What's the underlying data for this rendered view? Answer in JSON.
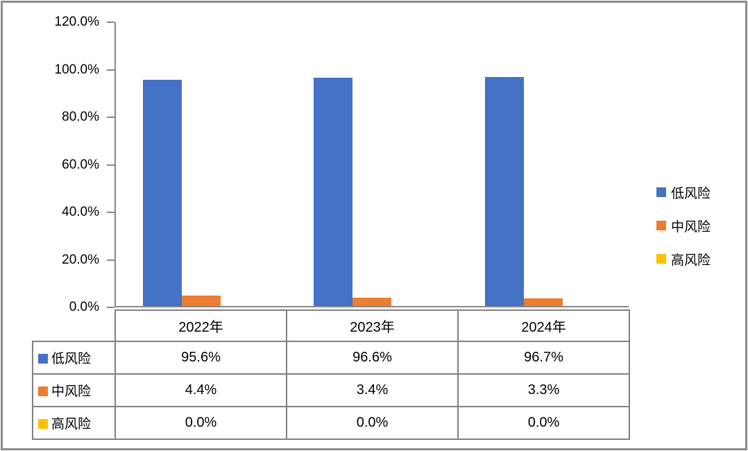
{
  "chart_data": {
    "type": "bar",
    "categories": [
      "2022年",
      "2023年",
      "2024年"
    ],
    "series": [
      {
        "name": "低风险",
        "color": "#4472C4",
        "values": [
          95.6,
          96.6,
          96.7
        ]
      },
      {
        "name": "中风险",
        "color": "#ED7D31",
        "values": [
          4.4,
          3.4,
          3.3
        ]
      },
      {
        "name": "高风险",
        "color": "#FFC000",
        "values": [
          0.0,
          0.0,
          0.0
        ]
      }
    ],
    "title": "",
    "xlabel": "",
    "ylabel": "",
    "ylim": [
      0,
      120
    ],
    "ytick_labels": [
      "0.0%",
      "20.0%",
      "40.0%",
      "60.0%",
      "80.0%",
      "100.0%",
      "120.0%"
    ],
    "grid": false,
    "legend_position": "right",
    "value_suffix": "%"
  },
  "table": {
    "col_headers": [
      "2022年",
      "2023年",
      "2024年"
    ],
    "rows": [
      {
        "label": "低风险",
        "cells": [
          "95.6%",
          "96.6%",
          "96.7%"
        ]
      },
      {
        "label": "中风险",
        "cells": [
          "4.4%",
          "3.4%",
          "3.3%"
        ]
      },
      {
        "label": "高风险",
        "cells": [
          "0.0%",
          "0.0%",
          "0.0%"
        ]
      }
    ]
  },
  "colors": {
    "series_blue": "#4472C4",
    "series_orange": "#ED7D31",
    "series_yellow": "#FFC000",
    "axis": "#878787",
    "table_border": "#808080",
    "frame_border": "#8C8C8C",
    "text": "#000000"
  }
}
